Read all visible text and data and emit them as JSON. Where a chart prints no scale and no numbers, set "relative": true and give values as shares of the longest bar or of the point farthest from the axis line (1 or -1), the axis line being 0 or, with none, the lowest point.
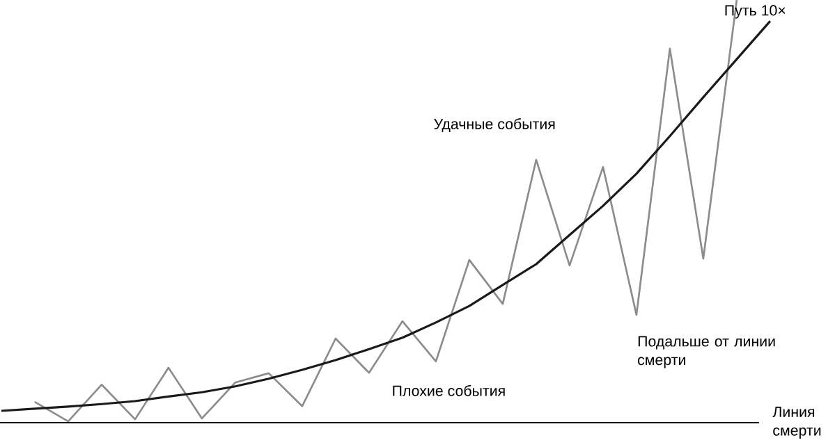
{
  "chart_data": {
    "type": "line",
    "relative": true,
    "marker": "none",
    "line_style": "solid",
    "xlabel": "Линия смерти",
    "categories": [
      null,
      null,
      null,
      null,
      null,
      null,
      null,
      null,
      null,
      null,
      null,
      null,
      null,
      null,
      null,
      null,
      null,
      null,
      null,
      null,
      null,
      null,
      null,
      null
    ],
    "series": [
      {
        "color": "#8c8c8c",
        "values": [
          null,
          0.049,
          0.003,
          0.09,
          0.008,
          0.13,
          0.01,
          0.095,
          0.117,
          0.039,
          0.199,
          0.118,
          0.24,
          0.145,
          0.385,
          0.281,
          0.622,
          0.372,
          0.605,
          0.255,
          0.885,
          0.388,
          1.0,
          null
        ]
      },
      {
        "color": "#1a1a1a",
        "values": [
          0.028,
          0.033,
          0.038,
          0.044,
          0.051,
          0.062,
          0.072,
          0.086,
          0.104,
          0.125,
          0.148,
          0.174,
          0.201,
          0.237,
          0.276,
          0.326,
          0.375,
          0.444,
          0.513,
          0.589,
          0.678,
          0.77,
          0.86,
          0.95
        ]
      }
    ],
    "annotations": [
      "Путь 10×",
      "Удачные события",
      "Плохие события",
      "Подальше от линии смерти"
    ]
  }
}
